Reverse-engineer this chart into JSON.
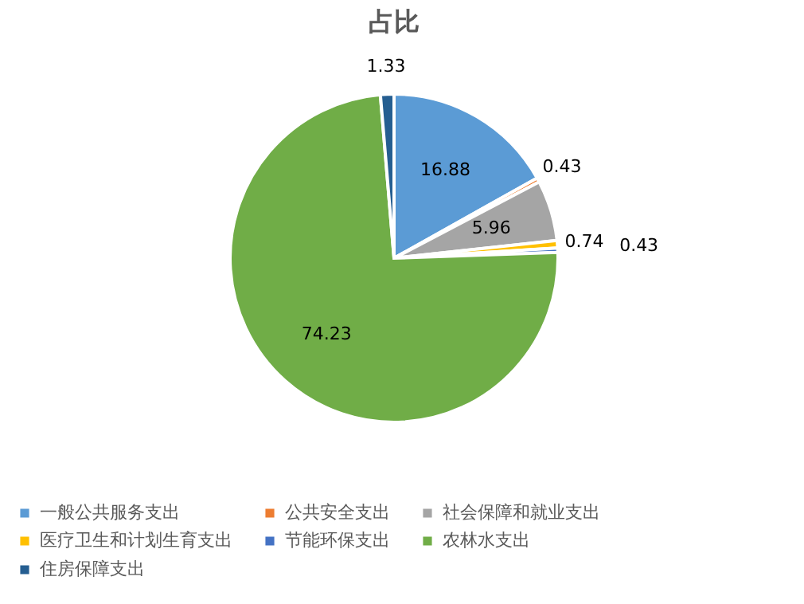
{
  "chart_data": {
    "type": "pie",
    "title": "占比",
    "categories": [
      "一般公共服务支出",
      "公共安全支出",
      "社会保障和就业支出",
      "医疗卫生和计划生育支出",
      "节能环保支出",
      "农林水支出",
      "住房保障支出"
    ],
    "values": [
      16.88,
      0.43,
      5.96,
      0.74,
      0.43,
      74.23,
      1.33
    ],
    "colors": [
      "#5b9bd5",
      "#ed7d31",
      "#a5a5a5",
      "#ffc000",
      "#4472c4",
      "#70ad47",
      "#255e91"
    ],
    "data_labels": true,
    "legend": "bottom"
  }
}
